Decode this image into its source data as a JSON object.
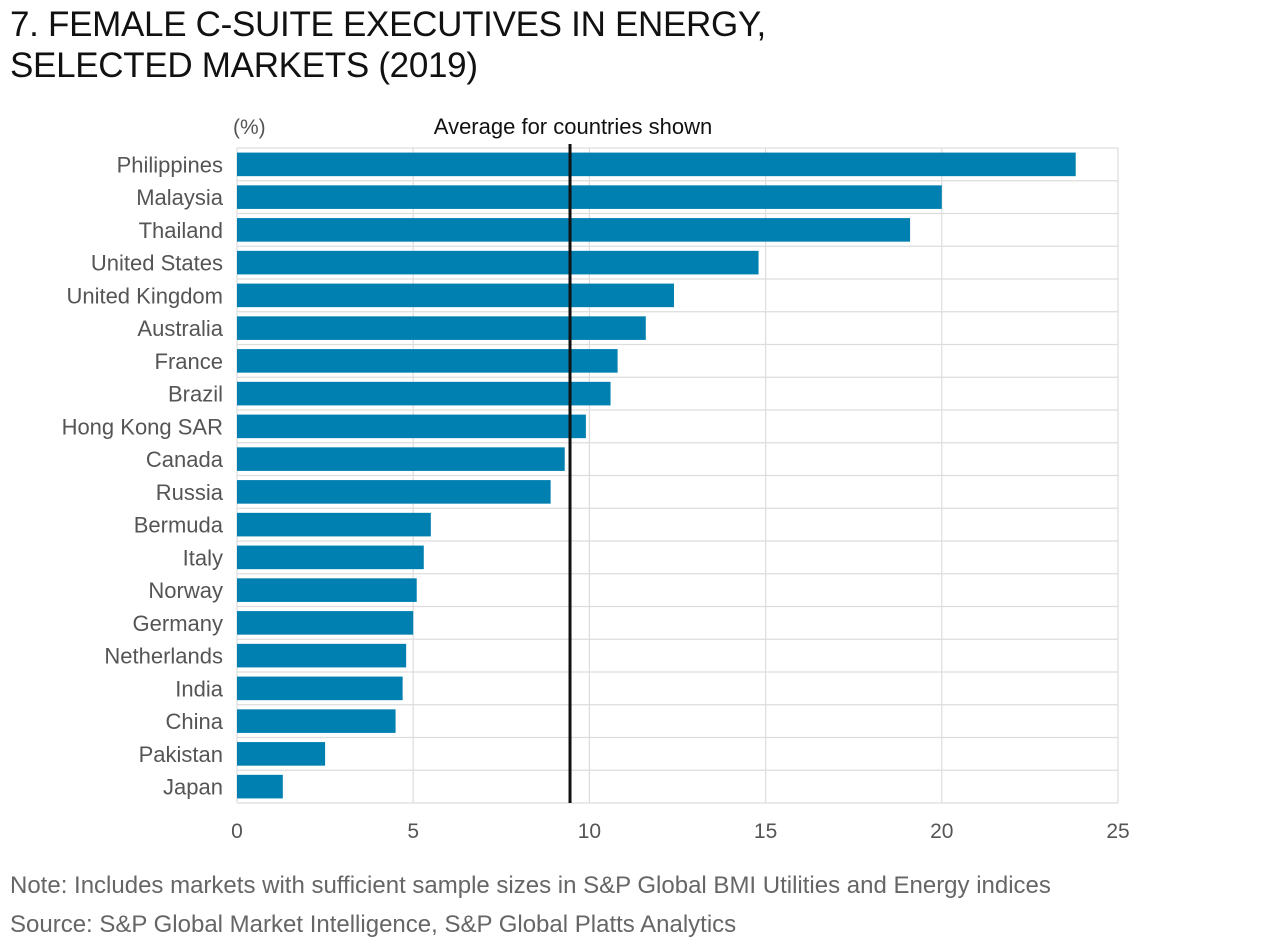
{
  "title_lines": [
    "7. FEMALE C-SUITE EXECUTIVES IN ENERGY,",
    "SELECTED MARKETS (2019)"
  ],
  "note": "Note: Includes markets with sufficient sample sizes in S&P Global BMI Utilities and Energy indices",
  "source": "Source: S&P Global Market Intelligence, S&P Global Platts Analytics",
  "chart_data": {
    "type": "bar",
    "orientation": "horizontal",
    "title": "7. FEMALE C-SUITE EXECUTIVES IN ENERGY, SELECTED MARKETS (2019)",
    "unit_label": "(%)",
    "categories": [
      "Philippines",
      "Malaysia",
      "Thailand",
      "United States",
      "United Kingdom",
      "Australia",
      "France",
      "Brazil",
      "Hong Kong SAR",
      "Canada",
      "Russia",
      "Bermuda",
      "Italy",
      "Norway",
      "Germany",
      "Netherlands",
      "India",
      "China",
      "Pakistan",
      "Japan"
    ],
    "values": [
      23.8,
      20.0,
      19.1,
      14.8,
      12.4,
      11.6,
      10.8,
      10.6,
      9.9,
      9.3,
      8.9,
      5.5,
      5.3,
      5.1,
      5.0,
      4.8,
      4.7,
      4.5,
      2.5,
      1.3
    ],
    "xlim": [
      0,
      25
    ],
    "xticks": [
      0,
      5,
      10,
      15,
      20,
      25
    ],
    "grid": true,
    "bar_color": "#0080b0",
    "reference_line": {
      "label": "Average for countries shown",
      "value": 9.45,
      "color": "#111111"
    }
  }
}
